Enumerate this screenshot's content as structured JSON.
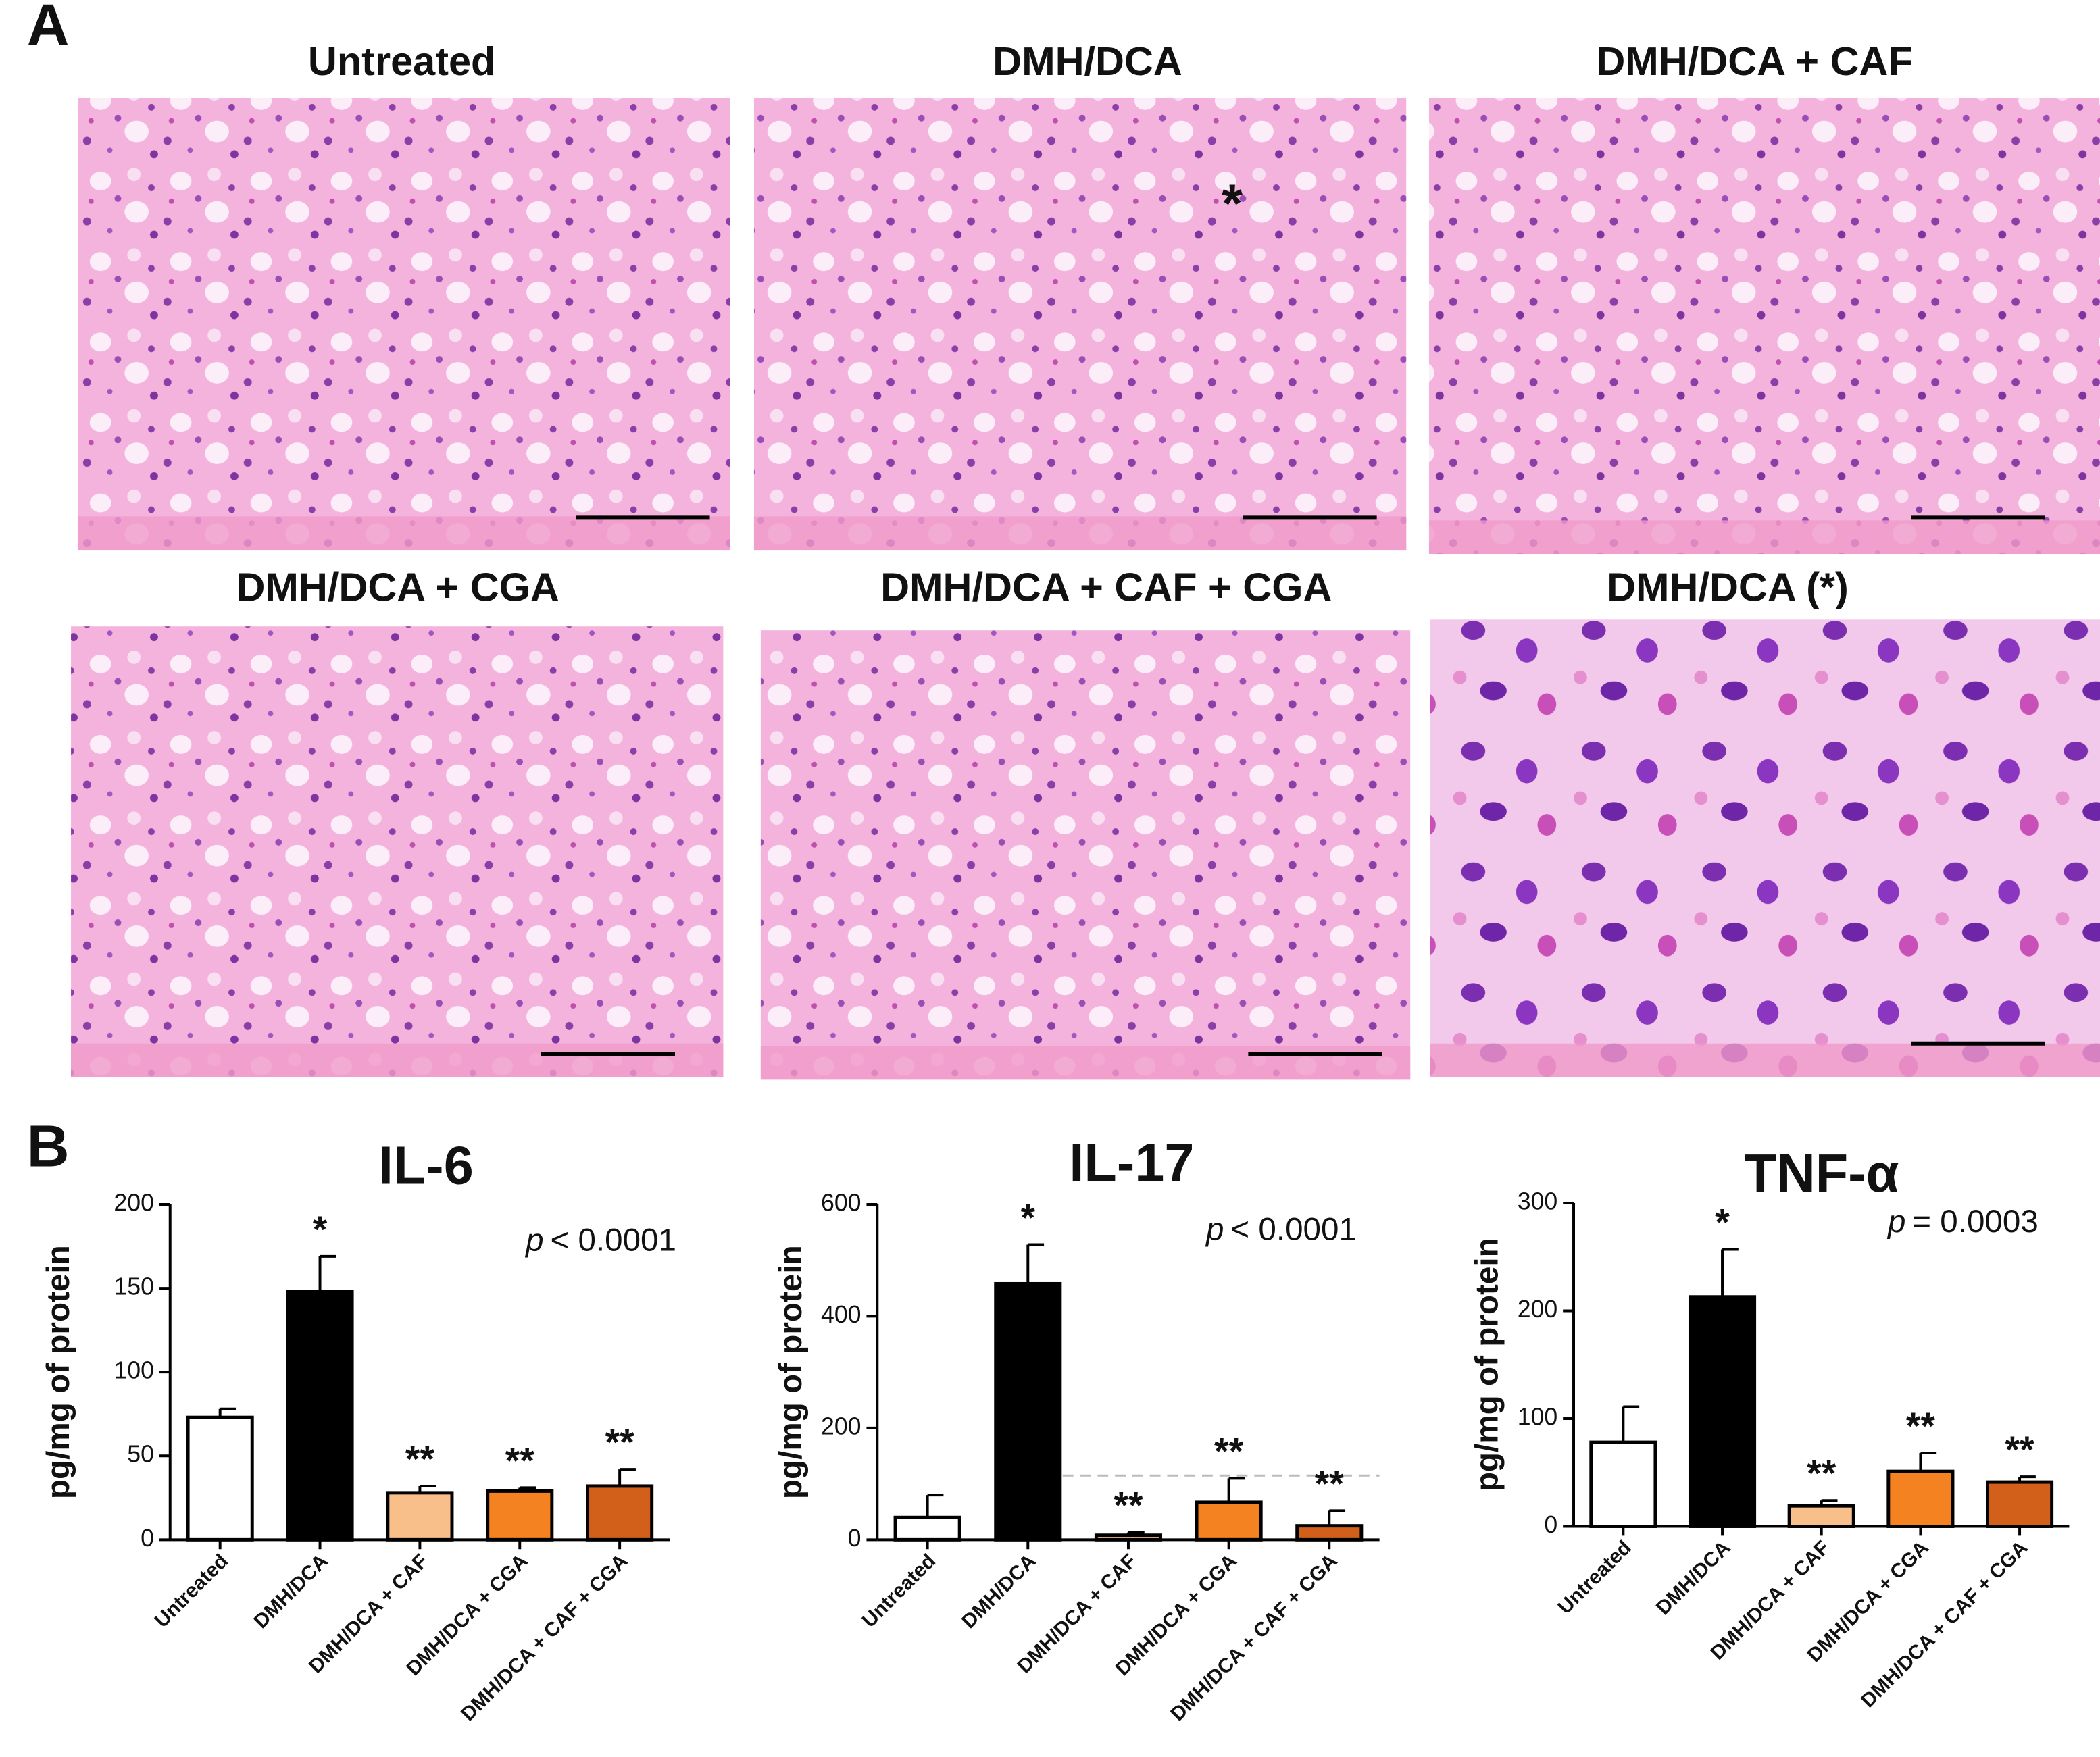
{
  "panel_a": {
    "label": "A",
    "images": [
      {
        "title": "Untreated"
      },
      {
        "title": "DMH/DCA",
        "marker": "*"
      },
      {
        "title": "DMH/DCA + CAF"
      },
      {
        "title": "DMH/DCA + CGA"
      },
      {
        "title": "DMH/DCA + CAF + CGA"
      },
      {
        "title": "DMH/DCA (*)"
      }
    ]
  },
  "panel_b": {
    "label": "B"
  },
  "chart_data": [
    {
      "type": "bar",
      "title": "IL-6",
      "ylabel": "pg/mg of protein",
      "p_symbol": "p",
      "p_value": "< 0.0001",
      "categories": [
        "Untreated",
        "DMH/DCA",
        "DMH/DCA + CAF",
        "DMH/DCA + CGA",
        "DMH/DCA + CAF + CGA"
      ],
      "values": [
        73,
        148,
        28,
        29,
        32
      ],
      "errors": [
        5,
        21,
        4,
        2,
        10
      ],
      "significance": [
        null,
        "*",
        "**",
        "**",
        "**"
      ],
      "colors": [
        "#ffffff",
        "#000000",
        "#f9bf8b",
        "#f58220",
        "#d2601a"
      ],
      "ylim": [
        0,
        200
      ],
      "yticks": [
        0,
        50,
        100,
        150,
        200
      ]
    },
    {
      "type": "bar",
      "title": "IL-17",
      "ylabel": "pg/mg of protein",
      "p_symbol": "p",
      "p_value": "< 0.0001",
      "categories": [
        "Untreated",
        "DMH/DCA",
        "DMH/DCA + CAF",
        "DMH/DCA + CGA",
        "DMH/DCA + CAF + CGA"
      ],
      "values": [
        40,
        458,
        8,
        67,
        25
      ],
      "errors": [
        40,
        70,
        5,
        43,
        27
      ],
      "significance": [
        null,
        "*",
        "**",
        "**",
        "**"
      ],
      "colors": [
        "#ffffff",
        "#000000",
        "#f9bf8b",
        "#f58220",
        "#d2601a"
      ],
      "reference_line": 115,
      "ylim": [
        0,
        600
      ],
      "yticks": [
        0,
        200,
        400,
        600
      ]
    },
    {
      "type": "bar",
      "title": "TNF-α",
      "ylabel": "pg/mg of protein",
      "p_symbol": "p",
      "p_value": "= 0.0003",
      "categories": [
        "Untreated",
        "DMH/DCA",
        "DMH/DCA + CAF",
        "DMH/DCA + CGA",
        "DMH/DCA + CAF + CGA"
      ],
      "values": [
        78,
        213,
        19,
        51,
        41
      ],
      "errors": [
        33,
        44,
        5,
        17,
        5
      ],
      "significance": [
        null,
        "*",
        "**",
        "**",
        "**"
      ],
      "colors": [
        "#ffffff",
        "#000000",
        "#f9bf8b",
        "#f58220",
        "#d2601a"
      ],
      "ylim": [
        0,
        300
      ],
      "yticks": [
        0,
        100,
        200,
        300
      ]
    }
  ]
}
